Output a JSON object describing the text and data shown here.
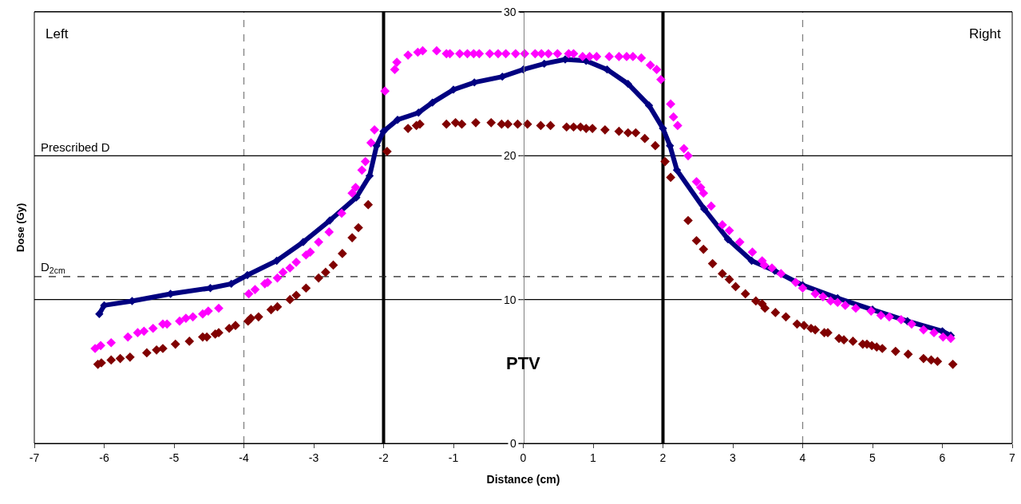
{
  "chart_data": {
    "type": "scatter",
    "xlabel": "Distance (cm)",
    "ylabel": "Dose (Gy)",
    "xlim": [
      -7,
      7
    ],
    "xticks": [
      -7,
      -6,
      -5,
      -4,
      -3,
      -2,
      -1,
      0,
      1,
      2,
      3,
      4,
      5,
      6,
      7
    ],
    "ylim": [
      0,
      30
    ],
    "yticks": [
      0,
      10,
      20,
      30
    ],
    "marker": "diamond",
    "annotations": [
      "Left",
      "Right",
      "PTV"
    ],
    "ref_lines": [
      {
        "axis": "x",
        "value": -4,
        "color": "#808080",
        "line_style": "dashed"
      },
      {
        "axis": "x",
        "value": 4,
        "color": "#808080",
        "line_style": "dashed"
      },
      {
        "axis": "x",
        "value": -2,
        "color": "#000000",
        "line_style": "solid"
      },
      {
        "axis": "x",
        "value": 2,
        "color": "#000000",
        "line_style": "solid"
      },
      {
        "axis": "y",
        "value": 10,
        "color": "#000000",
        "line_style": "solid"
      },
      {
        "axis": "y",
        "value": 20,
        "label": "Prescribed D",
        "color": "#000000",
        "line_style": "solid"
      },
      {
        "axis": "y",
        "value": 11.6,
        "label": "D$_{2cm}$",
        "color": "#202020",
        "line_style": "dashed"
      }
    ],
    "series": [
      {
        "type": "line",
        "color": "#000080",
        "x": [
          -6.07,
          -6.0,
          -5.6,
          -5.05,
          -4.48,
          -4.18,
          -3.95,
          -3.53,
          -3.15,
          -2.77,
          -2.39,
          -2.2,
          -2.1,
          -2.0,
          -1.8,
          -1.5,
          -1.3,
          -1.0,
          -0.7,
          -0.3,
          0.0,
          0.3,
          0.6,
          0.9,
          1.2,
          1.5,
          1.8,
          2.0,
          2.1,
          2.2,
          2.59,
          2.93,
          3.27,
          3.6,
          4.0,
          4.5,
          5.0,
          5.5,
          6.0,
          6.12
        ],
        "values": [
          9.0,
          9.6,
          9.9,
          10.4,
          10.8,
          11.1,
          11.7,
          12.7,
          14.0,
          15.5,
          17.1,
          18.6,
          20.7,
          21.7,
          22.5,
          23.0,
          23.7,
          24.6,
          25.1,
          25.5,
          26.0,
          26.4,
          26.7,
          26.6,
          26.0,
          25.0,
          23.5,
          21.9,
          20.7,
          19.0,
          16.3,
          14.2,
          12.7,
          12.0,
          11.0,
          10.1,
          9.3,
          8.5,
          7.8,
          7.5
        ]
      },
      {
        "color": "#ff00ff",
        "x": [
          -6.13,
          -6.05,
          -5.9,
          -5.66,
          -5.52,
          -5.43,
          -5.3,
          -5.16,
          -5.1,
          -4.92,
          -4.83,
          -4.73,
          -4.59,
          -4.51,
          -4.36,
          -3.93,
          -3.84,
          -3.7,
          -3.66,
          -3.52,
          -3.44,
          -3.34,
          -3.25,
          -3.11,
          -3.05,
          -2.93,
          -2.78,
          -2.6,
          -2.45,
          -2.4,
          -2.31,
          -2.26,
          -2.18,
          -2.13,
          -1.98,
          -1.84,
          -1.81,
          -1.65,
          -1.51,
          -1.44,
          -1.24,
          -1.1,
          -1.05,
          -0.91,
          -0.8,
          -0.71,
          -0.63,
          -0.48,
          -0.36,
          -0.25,
          -0.11,
          0.02,
          0.17,
          0.26,
          0.36,
          0.49,
          0.65,
          0.72,
          0.85,
          0.95,
          1.05,
          1.23,
          1.37,
          1.48,
          1.57,
          1.69,
          1.82,
          1.91,
          1.97,
          2.11,
          2.15,
          2.21,
          2.3,
          2.36,
          2.48,
          2.54,
          2.58,
          2.69,
          2.85,
          2.95,
          3.1,
          3.28,
          3.42,
          3.45,
          3.56,
          3.69,
          3.9,
          4.0,
          4.18,
          4.29,
          4.4,
          4.5,
          4.61,
          4.76,
          4.98,
          5.12,
          5.24,
          5.41,
          5.56,
          5.73,
          5.88,
          6.01,
          6.12
        ],
        "values": [
          6.6,
          6.8,
          7.0,
          7.4,
          7.7,
          7.8,
          8.0,
          8.3,
          8.3,
          8.5,
          8.7,
          8.8,
          9.0,
          9.2,
          9.4,
          10.4,
          10.7,
          11.1,
          11.2,
          11.5,
          11.9,
          12.2,
          12.6,
          13.1,
          13.3,
          14.0,
          14.7,
          16.0,
          17.4,
          17.8,
          19.0,
          19.6,
          20.9,
          21.8,
          24.5,
          26.0,
          26.5,
          27.0,
          27.2,
          27.3,
          27.3,
          27.1,
          27.1,
          27.1,
          27.1,
          27.1,
          27.1,
          27.1,
          27.1,
          27.1,
          27.1,
          27.1,
          27.1,
          27.1,
          27.1,
          27.1,
          27.1,
          27.1,
          26.9,
          26.9,
          26.9,
          26.9,
          26.9,
          26.9,
          26.9,
          26.8,
          26.3,
          26.0,
          25.3,
          23.6,
          22.7,
          22.1,
          20.5,
          20.0,
          18.2,
          17.8,
          17.4,
          16.5,
          15.2,
          14.8,
          14.0,
          13.3,
          12.7,
          12.4,
          12.2,
          11.8,
          11.2,
          10.8,
          10.4,
          10.2,
          9.9,
          9.8,
          9.6,
          9.4,
          9.2,
          8.9,
          8.8,
          8.6,
          8.3,
          7.9,
          7.7,
          7.4,
          7.3
        ]
      },
      {
        "color": "#800000",
        "x": [
          -6.09,
          -6.04,
          -5.9,
          -5.77,
          -5.63,
          -5.39,
          -5.25,
          -5.16,
          -4.98,
          -4.78,
          -4.59,
          -4.53,
          -4.41,
          -4.36,
          -4.21,
          -4.12,
          -3.94,
          -3.9,
          -3.79,
          -3.61,
          -3.52,
          -3.34,
          -3.25,
          -3.11,
          -2.93,
          -2.83,
          -2.72,
          -2.59,
          -2.45,
          -2.36,
          -2.22,
          -1.95,
          -1.65,
          -1.53,
          -1.48,
          -1.1,
          -0.97,
          -0.88,
          -0.68,
          -0.46,
          -0.31,
          -0.22,
          -0.08,
          0.06,
          0.25,
          0.39,
          0.62,
          0.72,
          0.82,
          0.9,
          0.99,
          1.17,
          1.37,
          1.5,
          1.61,
          1.74,
          1.89,
          2.03,
          2.11,
          2.36,
          2.48,
          2.58,
          2.71,
          2.85,
          2.95,
          3.04,
          3.18,
          3.33,
          3.42,
          3.46,
          3.61,
          3.76,
          3.92,
          4.02,
          4.12,
          4.18,
          4.31,
          4.36,
          4.52,
          4.59,
          4.72,
          4.86,
          4.92,
          4.99,
          5.06,
          5.14,
          5.33,
          5.51,
          5.73,
          5.84,
          5.93,
          6.15
        ],
        "values": [
          5.5,
          5.6,
          5.8,
          5.9,
          6.0,
          6.3,
          6.5,
          6.6,
          6.9,
          7.1,
          7.4,
          7.4,
          7.6,
          7.7,
          8.0,
          8.2,
          8.5,
          8.7,
          8.8,
          9.3,
          9.5,
          10.0,
          10.3,
          10.8,
          11.5,
          11.9,
          12.4,
          13.2,
          14.3,
          15.0,
          16.6,
          20.3,
          21.9,
          22.1,
          22.2,
          22.2,
          22.3,
          22.2,
          22.3,
          22.3,
          22.2,
          22.2,
          22.2,
          22.2,
          22.1,
          22.1,
          22.0,
          22.0,
          22.0,
          21.9,
          21.9,
          21.8,
          21.7,
          21.6,
          21.6,
          21.2,
          20.7,
          19.6,
          18.5,
          15.5,
          14.1,
          13.5,
          12.5,
          11.8,
          11.4,
          10.9,
          10.4,
          9.9,
          9.7,
          9.4,
          9.1,
          8.8,
          8.3,
          8.2,
          8.0,
          7.9,
          7.7,
          7.7,
          7.3,
          7.2,
          7.1,
          6.9,
          6.9,
          6.8,
          6.7,
          6.6,
          6.4,
          6.2,
          5.9,
          5.8,
          5.7,
          5.5
        ]
      }
    ]
  }
}
